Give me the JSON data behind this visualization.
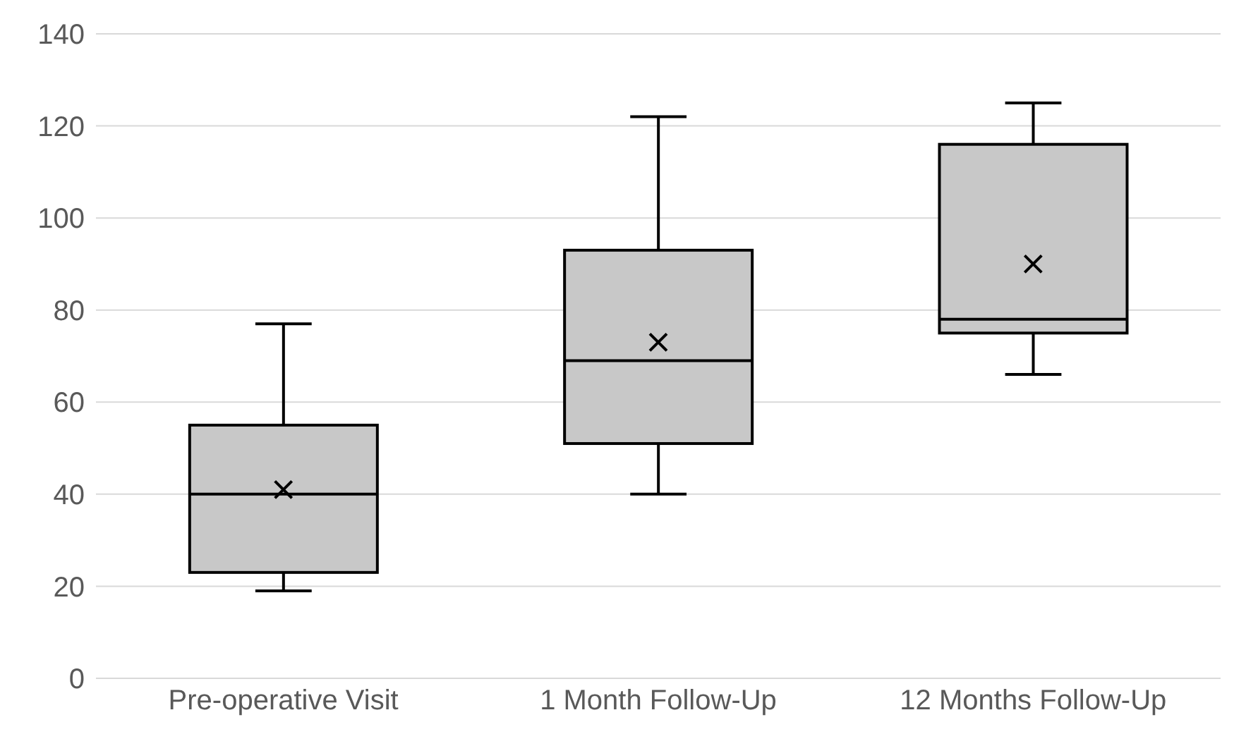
{
  "chart_data": {
    "type": "box",
    "categories": [
      "Pre-operative Visit",
      "1 Month Follow-Up",
      "12 Months Follow-Up"
    ],
    "boxes": [
      {
        "low": 19,
        "q1": 23,
        "median": 40,
        "q3": 55,
        "high": 77,
        "mean": 41
      },
      {
        "low": 40,
        "q1": 51,
        "median": 69,
        "q3": 93,
        "high": 122,
        "mean": 73
      },
      {
        "low": 66,
        "q1": 75,
        "median": 78,
        "q3": 116,
        "high": 125,
        "mean": 90
      }
    ],
    "color": "#c8c8c8",
    "ylim": [
      0,
      140
    ],
    "yticks": [
      0,
      20,
      40,
      60,
      80,
      100,
      120,
      140
    ],
    "grid": "y",
    "legend": false
  }
}
